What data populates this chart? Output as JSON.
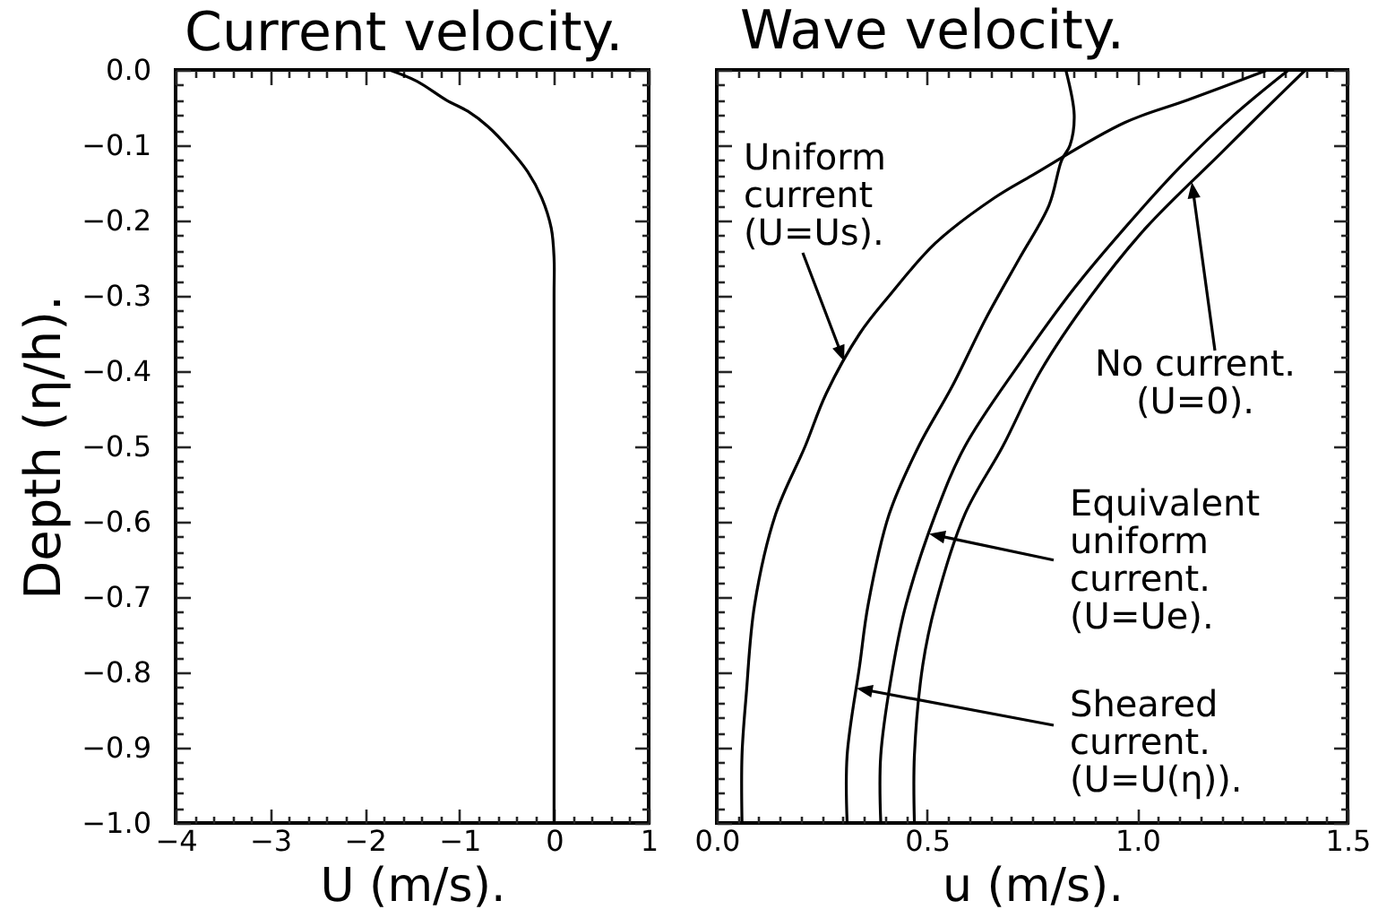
{
  "chart_data": [
    {
      "type": "line",
      "title": "Current velocity.",
      "xlabel": "U (m/s).",
      "ylabel": "Depth (η/h).",
      "xlim": [
        -4,
        1
      ],
      "ylim": [
        -1,
        0
      ],
      "xticks": [
        -4,
        {
          "value": -3.8,
          "label": null
        },
        {
          "value": -3.6,
          "label": null
        },
        {
          "value": -3.4,
          "label": null
        },
        {
          "value": -3.2,
          "label": null
        },
        -3,
        {
          "value": -2.8,
          "label": null
        },
        {
          "value": -2.6,
          "label": null
        },
        {
          "value": -2.4,
          "label": null
        },
        {
          "value": -2.2,
          "label": null
        },
        -2,
        {
          "value": -1.8,
          "label": null
        },
        {
          "value": -1.6,
          "label": null
        },
        {
          "value": -1.4,
          "label": null
        },
        {
          "value": -1.2,
          "label": null
        },
        -1,
        {
          "value": -0.8,
          "label": null
        },
        {
          "value": -0.6,
          "label": null
        },
        {
          "value": -0.4,
          "label": null
        },
        {
          "value": -0.2,
          "label": null
        },
        0,
        {
          "value": 0.2,
          "label": null
        },
        {
          "value": 0.4,
          "label": null
        },
        {
          "value": 0.6,
          "label": null
        },
        {
          "value": 0.8,
          "label": null
        },
        1
      ],
      "yticks": [
        {
          "value": 0,
          "label": "0.0"
        },
        {
          "value": -0.02,
          "label": null
        },
        {
          "value": -0.04,
          "label": null
        },
        {
          "value": -0.06,
          "label": null
        },
        {
          "value": -0.08,
          "label": null
        },
        -0.1,
        {
          "value": -0.12,
          "label": null
        },
        {
          "value": -0.14,
          "label": null
        },
        {
          "value": -0.16,
          "label": null
        },
        {
          "value": -0.18,
          "label": null
        },
        -0.2,
        {
          "value": -0.22,
          "label": null
        },
        {
          "value": -0.24,
          "label": null
        },
        {
          "value": -0.26,
          "label": null
        },
        {
          "value": -0.28,
          "label": null
        },
        -0.3,
        {
          "value": -0.32,
          "label": null
        },
        {
          "value": -0.34,
          "label": null
        },
        {
          "value": -0.36,
          "label": null
        },
        {
          "value": -0.38,
          "label": null
        },
        -0.4,
        {
          "value": -0.42,
          "label": null
        },
        {
          "value": -0.44,
          "label": null
        },
        {
          "value": -0.46,
          "label": null
        },
        {
          "value": -0.48,
          "label": null
        },
        -0.5,
        {
          "value": -0.52,
          "label": null
        },
        {
          "value": -0.54,
          "label": null
        },
        {
          "value": -0.56,
          "label": null
        },
        {
          "value": -0.58,
          "label": null
        },
        -0.6,
        {
          "value": -0.62,
          "label": null
        },
        {
          "value": -0.64,
          "label": null
        },
        {
          "value": -0.66,
          "label": null
        },
        {
          "value": -0.68,
          "label": null
        },
        -0.7,
        {
          "value": -0.72,
          "label": null
        },
        {
          "value": -0.74,
          "label": null
        },
        {
          "value": -0.76,
          "label": null
        },
        {
          "value": -0.78,
          "label": null
        },
        -0.8,
        {
          "value": -0.82,
          "label": null
        },
        {
          "value": -0.84,
          "label": null
        },
        {
          "value": -0.86,
          "label": null
        },
        {
          "value": -0.88,
          "label": null
        },
        -0.9,
        {
          "value": -0.92,
          "label": null
        },
        {
          "value": -0.94,
          "label": null
        },
        {
          "value": -0.96,
          "label": null
        },
        {
          "value": -0.98,
          "label": null
        },
        {
          "value": -1,
          "label": "−1.0"
        }
      ],
      "series": [
        {
          "color": "#000000",
          "x": [
            -1.74,
            -1.45,
            -1.14,
            -0.91,
            -0.7,
            -0.47,
            -0.28,
            -0.13,
            -0.03,
            0,
            0,
            0
          ],
          "values": [
            0,
            -0.015,
            -0.04,
            -0.055,
            -0.075,
            -0.105,
            -0.135,
            -0.17,
            -0.21,
            -0.25,
            -0.3,
            -1
          ]
        }
      ]
    },
    {
      "type": "line",
      "title": "Wave velocity.",
      "xlabel": "u (m/s).",
      "xlim": [
        0,
        1.5
      ],
      "ylim": [
        -1,
        0
      ],
      "tick_labels": "x",
      "xticks": [
        {
          "value": 0,
          "label": "0.0"
        },
        {
          "value": 0.05,
          "label": null
        },
        {
          "value": 0.1,
          "label": null
        },
        {
          "value": 0.15,
          "label": null
        },
        {
          "value": 0.2,
          "label": null
        },
        {
          "value": 0.25,
          "label": null
        },
        {
          "value": 0.3,
          "label": null
        },
        {
          "value": 0.35,
          "label": null
        },
        {
          "value": 0.4,
          "label": null
        },
        {
          "value": 0.45,
          "label": null
        },
        0.5,
        {
          "value": 0.55,
          "label": null
        },
        {
          "value": 0.6,
          "label": null
        },
        {
          "value": 0.65,
          "label": null
        },
        {
          "value": 0.7,
          "label": null
        },
        {
          "value": 0.75,
          "label": null
        },
        {
          "value": 0.8,
          "label": null
        },
        {
          "value": 0.85,
          "label": null
        },
        {
          "value": 0.9,
          "label": null
        },
        {
          "value": 0.95,
          "label": null
        },
        {
          "value": 1,
          "label": "1.0"
        },
        {
          "value": 1.05,
          "label": null
        },
        {
          "value": 1.1,
          "label": null
        },
        {
          "value": 1.15,
          "label": null
        },
        {
          "value": 1.2,
          "label": null
        },
        {
          "value": 1.25,
          "label": null
        },
        {
          "value": 1.3,
          "label": null
        },
        {
          "value": 1.35,
          "label": null
        },
        {
          "value": 1.4,
          "label": null
        },
        {
          "value": 1.45,
          "label": null
        },
        1.5
      ],
      "yticks": [
        0,
        {
          "value": -0.02,
          "label": null
        },
        {
          "value": -0.04,
          "label": null
        },
        {
          "value": -0.06,
          "label": null
        },
        {
          "value": -0.08,
          "label": null
        },
        -0.1,
        {
          "value": -0.12,
          "label": null
        },
        {
          "value": -0.14,
          "label": null
        },
        {
          "value": -0.16,
          "label": null
        },
        {
          "value": -0.18,
          "label": null
        },
        -0.2,
        {
          "value": -0.22,
          "label": null
        },
        {
          "value": -0.24,
          "label": null
        },
        {
          "value": -0.26,
          "label": null
        },
        {
          "value": -0.28,
          "label": null
        },
        -0.3,
        {
          "value": -0.32,
          "label": null
        },
        {
          "value": -0.34,
          "label": null
        },
        {
          "value": -0.36,
          "label": null
        },
        {
          "value": -0.38,
          "label": null
        },
        -0.4,
        {
          "value": -0.42,
          "label": null
        },
        {
          "value": -0.44,
          "label": null
        },
        {
          "value": -0.46,
          "label": null
        },
        {
          "value": -0.48,
          "label": null
        },
        -0.5,
        {
          "value": -0.52,
          "label": null
        },
        {
          "value": -0.54,
          "label": null
        },
        {
          "value": -0.56,
          "label": null
        },
        {
          "value": -0.58,
          "label": null
        },
        -0.6,
        {
          "value": -0.62,
          "label": null
        },
        {
          "value": -0.64,
          "label": null
        },
        {
          "value": -0.66,
          "label": null
        },
        {
          "value": -0.68,
          "label": null
        },
        -0.7,
        {
          "value": -0.72,
          "label": null
        },
        {
          "value": -0.74,
          "label": null
        },
        {
          "value": -0.76,
          "label": null
        },
        {
          "value": -0.78,
          "label": null
        },
        -0.8,
        {
          "value": -0.82,
          "label": null
        },
        {
          "value": -0.84,
          "label": null
        },
        {
          "value": -0.86,
          "label": null
        },
        {
          "value": -0.88,
          "label": null
        },
        -0.9,
        {
          "value": -0.92,
          "label": null
        },
        {
          "value": -0.94,
          "label": null
        },
        {
          "value": -0.96,
          "label": null
        },
        {
          "value": -0.98,
          "label": null
        },
        -1
      ],
      "series": [
        {
          "name": "Uniform\ncurrent\n(U=Us).",
          "color": "#000000",
          "x": [
            1.31,
            1.12,
            0.97,
            0.75,
            0.66,
            0.52,
            0.41,
            0.34,
            0.26,
            0.21,
            0.14,
            0.09,
            0.07,
            0.06,
            0.06
          ],
          "values": [
            0,
            -0.04,
            -0.07,
            -0.14,
            -0.17,
            -0.23,
            -0.3,
            -0.35,
            -0.43,
            -0.5,
            -0.59,
            -0.71,
            -0.83,
            -0.91,
            -1
          ]
        },
        {
          "name": "No current.\n(U=0).",
          "color": "#000000",
          "x": [
            1.4,
            1.29,
            1.2,
            1.02,
            0.89,
            0.77,
            0.68,
            0.59,
            0.52,
            0.49,
            0.47,
            0.47
          ],
          "values": [
            0,
            -0.06,
            -0.11,
            -0.21,
            -0.3,
            -0.4,
            -0.5,
            -0.59,
            -0.71,
            -0.79,
            -0.91,
            -1
          ]
        },
        {
          "name": "Equivalent\nuniform\ncurrent.\n(U=Ue).",
          "color": "#000000",
          "x": [
            1.36,
            1.23,
            1.1,
            0.97,
            0.85,
            0.72,
            0.59,
            0.52,
            0.45,
            0.42,
            0.39,
            0.39
          ],
          "values": [
            0,
            -0.06,
            -0.13,
            -0.21,
            -0.29,
            -0.39,
            -0.5,
            -0.59,
            -0.71,
            -0.79,
            -0.91,
            -1
          ]
        },
        {
          "name": "Sheared\ncurrent.\n(U=U(η)).",
          "color": "#000000",
          "x": [
            0.83,
            0.85,
            0.84,
            0.82,
            0.79,
            0.72,
            0.64,
            0.56,
            0.48,
            0.41,
            0.36,
            0.34,
            0.31,
            0.31
          ],
          "values": [
            0,
            -0.06,
            -0.1,
            -0.12,
            -0.18,
            -0.25,
            -0.33,
            -0.42,
            -0.5,
            -0.59,
            -0.71,
            -0.79,
            -0.91,
            -1
          ]
        }
      ]
    }
  ]
}
